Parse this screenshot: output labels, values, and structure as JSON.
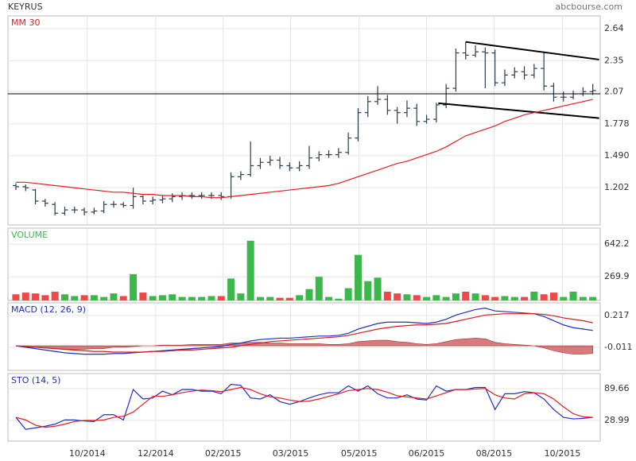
{
  "header": {
    "title": "KEYRUS",
    "source": "abcbourse.com"
  },
  "chart_data": [
    {
      "type": "ohlc",
      "color": "#2c3e50",
      "xlim": [
        -0.81,
        59.76
      ],
      "ylim": [
        0.864,
        2.755
      ],
      "yticks": [
        1.202,
        {
          "value": 1.49,
          "label": "1.490"
        },
        1.778,
        2.07,
        2.35,
        2.64
      ],
      "open": [
        1.22,
        1.21,
        1.18,
        1.08,
        1.05,
        0.97,
        1.0,
        1.0,
        0.98,
        0.99,
        1.05,
        1.05,
        1.04,
        1.12,
        1.08,
        1.09,
        1.1,
        1.12,
        1.13,
        1.13,
        1.13,
        1.13,
        1.12,
        1.3,
        1.32,
        1.4,
        1.43,
        1.45,
        1.4,
        1.38,
        1.4,
        1.47,
        1.5,
        1.5,
        1.52,
        1.65,
        1.88,
        1.98,
        2.0,
        1.9,
        1.88,
        1.92,
        1.8,
        1.82,
        1.95,
        2.1,
        2.42,
        2.4,
        2.43,
        2.42,
        2.15,
        2.22,
        2.25,
        2.22,
        2.28,
        2.12,
        2.02,
        2.02,
        2.05,
        2.07
      ],
      "high": [
        1.24,
        1.23,
        1.19,
        1.1,
        1.07,
        1.03,
        1.03,
        1.02,
        1.02,
        1.08,
        1.08,
        1.07,
        1.2,
        1.13,
        1.12,
        1.13,
        1.15,
        1.16,
        1.16,
        1.16,
        1.16,
        1.16,
        1.34,
        1.35,
        1.62,
        1.47,
        1.49,
        1.48,
        1.43,
        1.44,
        1.58,
        1.53,
        1.54,
        1.56,
        1.7,
        1.92,
        2.03,
        2.12,
        2.04,
        1.93,
        1.99,
        1.96,
        1.86,
        1.97,
        2.14,
        2.46,
        2.52,
        2.49,
        2.47,
        2.45,
        2.27,
        2.29,
        2.3,
        2.32,
        2.42,
        2.15,
        2.07,
        2.08,
        2.11,
        2.14
      ],
      "low": [
        1.18,
        1.17,
        1.05,
        1.03,
        0.95,
        0.95,
        0.97,
        0.95,
        0.96,
        0.97,
        1.02,
        1.02,
        1.01,
        1.05,
        1.05,
        1.06,
        1.07,
        1.09,
        1.1,
        1.1,
        1.1,
        1.09,
        1.1,
        1.27,
        1.3,
        1.37,
        1.4,
        1.37,
        1.35,
        1.35,
        1.37,
        1.44,
        1.47,
        1.47,
        1.5,
        1.62,
        1.84,
        1.95,
        1.86,
        1.78,
        1.84,
        1.76,
        1.78,
        1.79,
        1.92,
        2.07,
        2.36,
        2.38,
        2.1,
        2.12,
        2.12,
        2.19,
        2.18,
        2.19,
        2.08,
        1.98,
        1.98,
        2.0,
        2.03,
        2.04
      ],
      "close": [
        1.21,
        1.2,
        1.08,
        1.06,
        0.97,
        1.0,
        1.0,
        0.98,
        0.99,
        1.05,
        1.05,
        1.04,
        1.12,
        1.08,
        1.09,
        1.1,
        1.12,
        1.13,
        1.13,
        1.13,
        1.13,
        1.12,
        1.3,
        1.32,
        1.4,
        1.43,
        1.45,
        1.4,
        1.38,
        1.4,
        1.47,
        1.5,
        1.5,
        1.52,
        1.65,
        1.88,
        1.98,
        2.0,
        1.9,
        1.88,
        1.92,
        1.8,
        1.82,
        1.95,
        2.1,
        2.42,
        2.4,
        2.43,
        2.42,
        2.15,
        2.22,
        2.25,
        2.22,
        2.28,
        2.12,
        2.02,
        2.02,
        2.05,
        2.07,
        2.08
      ],
      "series": [
        {
          "name": "MM 30",
          "color": "#e02020",
          "values": [
            1.25,
            1.25,
            1.24,
            1.23,
            1.22,
            1.21,
            1.2,
            1.19,
            1.18,
            1.17,
            1.16,
            1.16,
            1.15,
            1.14,
            1.14,
            1.13,
            1.13,
            1.13,
            1.12,
            1.12,
            1.11,
            1.11,
            1.12,
            1.13,
            1.14,
            1.15,
            1.16,
            1.17,
            1.18,
            1.19,
            1.2,
            1.21,
            1.22,
            1.24,
            1.27,
            1.3,
            1.33,
            1.36,
            1.39,
            1.42,
            1.44,
            1.47,
            1.5,
            1.53,
            1.57,
            1.62,
            1.67,
            1.7,
            1.73,
            1.76,
            1.8,
            1.83,
            1.86,
            1.88,
            1.9,
            1.92,
            1.94,
            1.96,
            1.98,
            2.0
          ]
        }
      ],
      "trendlines": [
        {
          "x": [
            46,
            59.65
          ],
          "y": [
            2.52,
            2.36
          ]
        },
        {
          "x": [
            43.2,
            59.65
          ],
          "y": [
            1.965,
            1.83
          ]
        }
      ],
      "hline": 2.05
    },
    {
      "type": "bar",
      "title": "VOLUME",
      "up_color": "#3cb84a",
      "down_color": "#f04848",
      "xlim": [
        -0.81,
        59.76
      ],
      "ylim": [
        0,
        825
      ],
      "yticks": [
        269.9,
        642.2
      ],
      "values": [
        70,
        90,
        80,
        60,
        100,
        70,
        50,
        60,
        60,
        40,
        80,
        50,
        300,
        90,
        50,
        60,
        70,
        40,
        40,
        40,
        50,
        50,
        250,
        80,
        680,
        40,
        40,
        30,
        30,
        60,
        130,
        270,
        40,
        20,
        140,
        520,
        220,
        260,
        100,
        80,
        70,
        60,
        40,
        60,
        40,
        80,
        100,
        80,
        60,
        40,
        50,
        40,
        40,
        100,
        70,
        90,
        40,
        100,
        40,
        40
      ]
    },
    {
      "type": "line",
      "title": "MACD (12, 26, 9)",
      "xlim": [
        -0.81,
        59.76
      ],
      "ylim": [
        -0.176,
        0.308
      ],
      "yticks": [
        -0.011,
        0.217
      ],
      "area": {
        "color": "#c85050",
        "values": [
          0,
          -0.005,
          -0.01,
          -0.015,
          -0.02,
          -0.025,
          -0.025,
          -0.025,
          -0.02,
          -0.02,
          -0.01,
          -0.01,
          -0.005,
          0,
          0,
          0.005,
          0.005,
          0.005,
          0.01,
          0.01,
          0.01,
          0.01,
          0.02,
          0.02,
          0.025,
          0.025,
          0.02,
          0.02,
          0.015,
          0.015,
          0.015,
          0.015,
          0.01,
          0.01,
          0.015,
          0.03,
          0.035,
          0.04,
          0.04,
          0.03,
          0.025,
          0.015,
          0.01,
          0.015,
          0.03,
          0.045,
          0.05,
          0.055,
          0.05,
          0.025,
          0.015,
          0.01,
          0.005,
          0,
          -0.015,
          -0.035,
          -0.05,
          -0.06,
          -0.06,
          -0.055
        ]
      },
      "series": [
        {
          "color": "#2030c0",
          "values": [
            0,
            -0.01,
            -0.02,
            -0.03,
            -0.04,
            -0.05,
            -0.055,
            -0.06,
            -0.06,
            -0.06,
            -0.055,
            -0.055,
            -0.05,
            -0.045,
            -0.04,
            -0.035,
            -0.03,
            -0.025,
            -0.02,
            -0.015,
            -0.01,
            -0.005,
            0.01,
            0.02,
            0.035,
            0.045,
            0.05,
            0.055,
            0.055,
            0.06,
            0.065,
            0.07,
            0.07,
            0.075,
            0.09,
            0.12,
            0.14,
            0.16,
            0.17,
            0.17,
            0.17,
            0.165,
            0.16,
            0.17,
            0.19,
            0.22,
            0.24,
            0.26,
            0.27,
            0.25,
            0.245,
            0.24,
            0.235,
            0.23,
            0.21,
            0.18,
            0.15,
            0.13,
            0.12,
            0.11
          ]
        },
        {
          "color": "#d02020",
          "values": [
            0,
            -0.005,
            -0.01,
            -0.015,
            -0.02,
            -0.025,
            -0.03,
            -0.035,
            -0.04,
            -0.04,
            -0.045,
            -0.045,
            -0.045,
            -0.045,
            -0.04,
            -0.04,
            -0.035,
            -0.03,
            -0.03,
            -0.025,
            -0.02,
            -0.015,
            -0.01,
            0,
            0.01,
            0.02,
            0.03,
            0.035,
            0.04,
            0.045,
            0.05,
            0.055,
            0.06,
            0.065,
            0.075,
            0.09,
            0.105,
            0.12,
            0.13,
            0.14,
            0.145,
            0.15,
            0.15,
            0.155,
            0.16,
            0.175,
            0.19,
            0.205,
            0.22,
            0.225,
            0.23,
            0.23,
            0.23,
            0.23,
            0.225,
            0.215,
            0.2,
            0.19,
            0.18,
            0.165
          ]
        }
      ]
    },
    {
      "type": "line",
      "title": "STO (14, 5)",
      "xlim": [
        -0.81,
        59.76
      ],
      "ylim": [
        -10.4,
        118.5
      ],
      "yticks": [
        28.99,
        89.66
      ],
      "xticks": [
        {
          "value": 7.3,
          "label": "10/2014"
        },
        {
          "value": 14.3,
          "label": "12/2014"
        },
        {
          "value": 21.2,
          "label": "02/2015"
        },
        {
          "value": 28.1,
          "label": "03/2015"
        },
        {
          "value": 35.1,
          "label": "05/2015"
        },
        {
          "value": 42.0,
          "label": "06/2015"
        },
        {
          "value": 48.9,
          "label": "08/2015"
        },
        {
          "value": 55.9,
          "label": "10/2015"
        }
      ],
      "series": [
        {
          "color": "#2030c0",
          "values": [
            35,
            12,
            15,
            18,
            22,
            30,
            30,
            28,
            27,
            40,
            40,
            30,
            88,
            70,
            72,
            85,
            78,
            88,
            88,
            85,
            85,
            80,
            98,
            96,
            72,
            70,
            78,
            65,
            60,
            65,
            72,
            78,
            82,
            82,
            95,
            85,
            95,
            80,
            72,
            72,
            78,
            70,
            68,
            95,
            85,
            88,
            88,
            92,
            92,
            50,
            80,
            80,
            84,
            82,
            70,
            50,
            35,
            32,
            33,
            35
          ]
        },
        {
          "color": "#e02020",
          "values": [
            35,
            30,
            20,
            16,
            18,
            22,
            27,
            29,
            29,
            30,
            35,
            37,
            45,
            60,
            75,
            75,
            78,
            82,
            85,
            87,
            86,
            84,
            88,
            92,
            88,
            80,
            74,
            72,
            68,
            65,
            66,
            70,
            75,
            80,
            86,
            88,
            90,
            88,
            83,
            76,
            74,
            72,
            70,
            76,
            82,
            88,
            88,
            89,
            90,
            78,
            72,
            70,
            80,
            82,
            80,
            70,
            55,
            42,
            36,
            35
          ]
        }
      ]
    }
  ]
}
